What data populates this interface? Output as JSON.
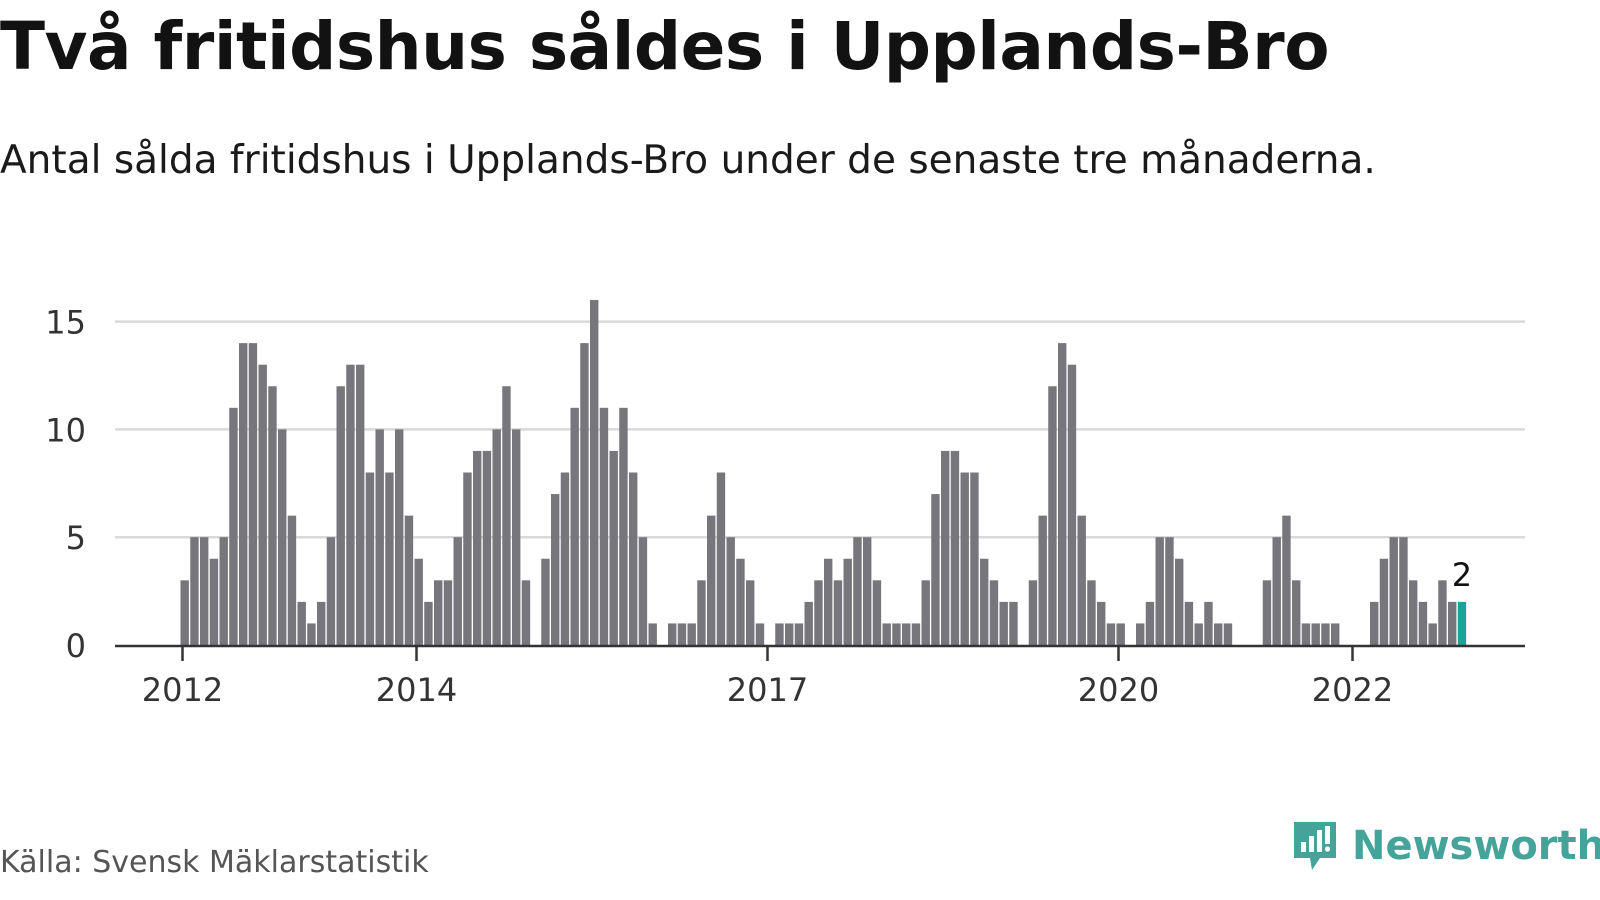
{
  "header": {
    "title": "Två fritidshus såldes i Upplands-Bro",
    "subtitle": "Antal sålda fritidshus i Upplands-Bro under de senaste tre månaderna."
  },
  "footer": {
    "source": "Källa: Svensk Mäklarstatistik",
    "brand": "Newsworthy",
    "brand_icon": "newsworthy-bar-chart-icon"
  },
  "colors": {
    "bar": "#77767c",
    "highlight": "#1aa39a",
    "grid": "#d9d9d9",
    "axis": "#333333",
    "brand": "#45a39a"
  },
  "chart_data": {
    "type": "bar",
    "start": "2012-01",
    "frequency": "monthly",
    "title": "Två fritidshus såldes i Upplands-Bro",
    "subtitle": "Antal sålda fritidshus i Upplands-Bro under de senaste tre månaderna.",
    "values": [
      3,
      5,
      5,
      4,
      5,
      11,
      14,
      14,
      13,
      12,
      10,
      6,
      2,
      1,
      2,
      5,
      12,
      13,
      13,
      8,
      10,
      8,
      10,
      6,
      4,
      2,
      3,
      3,
      5,
      8,
      9,
      9,
      10,
      12,
      10,
      3,
      0,
      4,
      7,
      8,
      11,
      14,
      16,
      11,
      9,
      11,
      8,
      5,
      1,
      0,
      1,
      1,
      1,
      3,
      6,
      8,
      5,
      4,
      3,
      1,
      0,
      1,
      1,
      1,
      2,
      3,
      4,
      3,
      4,
      5,
      5,
      3,
      1,
      1,
      1,
      1,
      3,
      7,
      9,
      9,
      8,
      8,
      4,
      3,
      2,
      2,
      0,
      3,
      6,
      12,
      14,
      13,
      6,
      3,
      2,
      1,
      1,
      0,
      1,
      2,
      5,
      5,
      4,
      2,
      1,
      2,
      1,
      1,
      0,
      0,
      0,
      3,
      5,
      6,
      3,
      1,
      1,
      1,
      1,
      0,
      0,
      0,
      2,
      4,
      5,
      5,
      3,
      2,
      1,
      3,
      2,
      2
    ],
    "highlight_last": true,
    "highlight_label": "2",
    "x_ticks": [
      {
        "label": "2012",
        "index": 0
      },
      {
        "label": "2014",
        "index": 24
      },
      {
        "label": "2017",
        "index": 60
      },
      {
        "label": "2020",
        "index": 96
      },
      {
        "label": "2022",
        "index": 120
      }
    ],
    "y_ticks": [
      0,
      5,
      10,
      15
    ],
    "ylim": [
      0,
      16
    ],
    "xlabel": "",
    "ylabel": "",
    "grid": true,
    "legend": "none"
  }
}
